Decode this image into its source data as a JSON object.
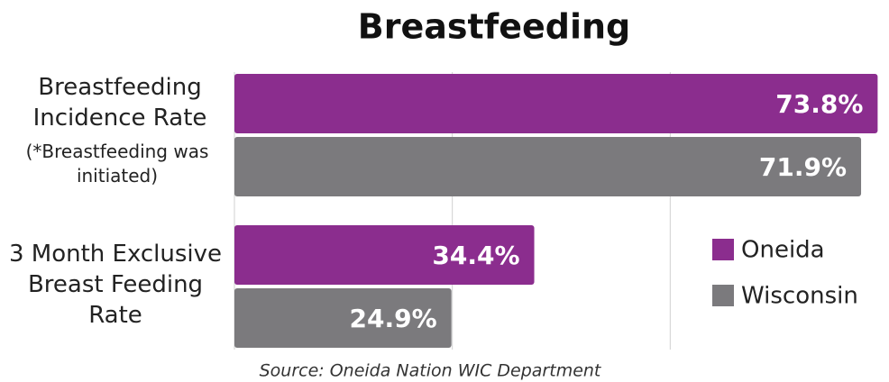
{
  "chart_data": {
    "type": "hbar",
    "title": "Breastfeeding",
    "categories": [
      "Breastfeeding Incidence Rate",
      "3 Month Exclusive Breast Feeding Rate"
    ],
    "annotation": "(*Breastfeeding was initiated)",
    "series": [
      {
        "name": "Oneida",
        "color": "#8b2d8e",
        "values": [
          73.8,
          34.4
        ],
        "value_labels": [
          "73.8%",
          "34.4%"
        ]
      },
      {
        "name": "Wisconsin",
        "color": "#7b7a7d",
        "values": [
          71.9,
          24.9
        ],
        "value_labels": [
          "71.9%",
          "24.9%"
        ]
      }
    ],
    "xlim": [
      0,
      75
    ],
    "xticks": [
      0,
      25,
      50
    ],
    "grid": true,
    "legend": "right",
    "source": "Source: Oneida Nation WIC Department"
  }
}
